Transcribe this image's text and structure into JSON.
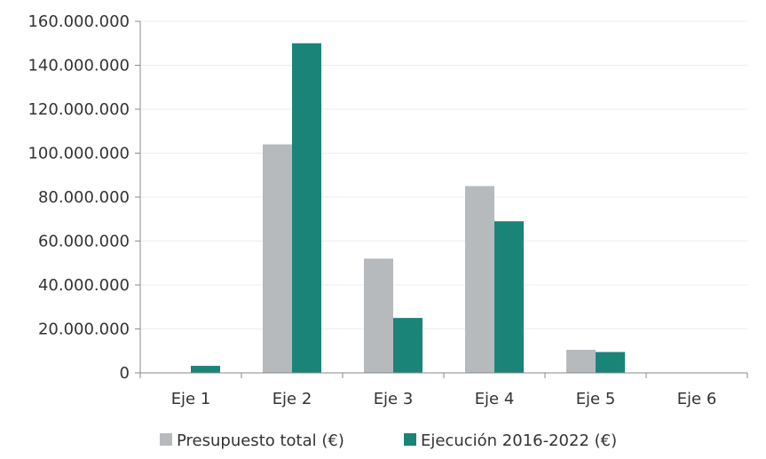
{
  "chart_data": {
    "type": "bar",
    "categories": [
      "Eje 1",
      "Eje 2",
      "Eje 3",
      "Eje 4",
      "Eje 5",
      "Eje 6"
    ],
    "series": [
      {
        "name": "Presupuesto total (€)",
        "color": "#b7babd",
        "values": [
          0,
          104000000,
          52000000,
          85000000,
          10500000,
          0
        ]
      },
      {
        "name": "Ejecución 2016-2022 (€)",
        "color": "#1b8478",
        "values": [
          3200000,
          150000000,
          25000000,
          69000000,
          9500000,
          0
        ]
      }
    ],
    "ylim": [
      0,
      160000000
    ],
    "yticks": [
      0,
      20000000,
      40000000,
      60000000,
      80000000,
      100000000,
      120000000,
      140000000,
      160000000
    ],
    "ytick_labels": [
      "0",
      "20.000.000",
      "40.000.000",
      "60.000.000",
      "80.000.000",
      "100.000.000",
      "120.000.000",
      "140.000.000",
      "160.000.000"
    ],
    "title": "",
    "xlabel": "",
    "ylabel": "",
    "grid": true,
    "legend_position": "bottom"
  }
}
